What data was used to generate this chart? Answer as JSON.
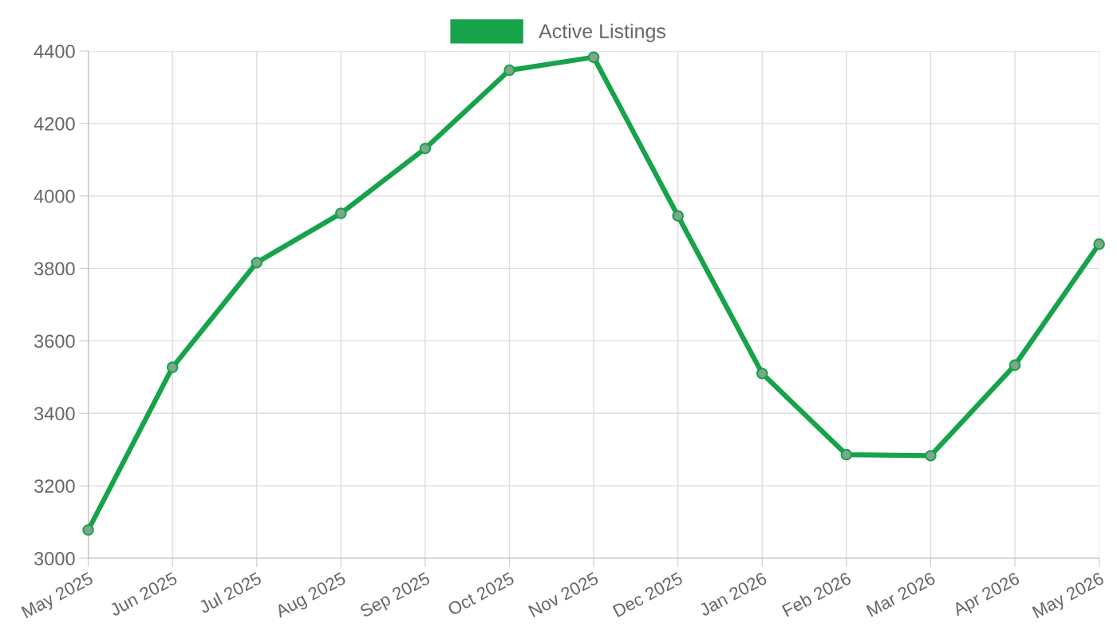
{
  "chart_data": {
    "type": "line",
    "categories": [
      "May 2025",
      "Jun 2025",
      "Jul 2025",
      "Aug 2025",
      "Sep 2025",
      "Oct 2025",
      "Nov 2025",
      "Dec 2025",
      "Jan 2026",
      "Feb 2026",
      "Mar 2026",
      "Apr 2026",
      "May 2026"
    ],
    "series": [
      {
        "name": "Active Listings",
        "color": "#16a34a",
        "values": [
          3078,
          3527,
          3816,
          3952,
          4131,
          4347,
          4383,
          3945,
          3510,
          3286,
          3283,
          3533,
          3867
        ]
      }
    ],
    "ylim": [
      3000,
      4400
    ],
    "yticks": [
      3000,
      3200,
      3400,
      3600,
      3800,
      4000,
      4200,
      4400
    ],
    "grid": true,
    "legend": "top",
    "marker": "circle",
    "line_style": "solid"
  }
}
